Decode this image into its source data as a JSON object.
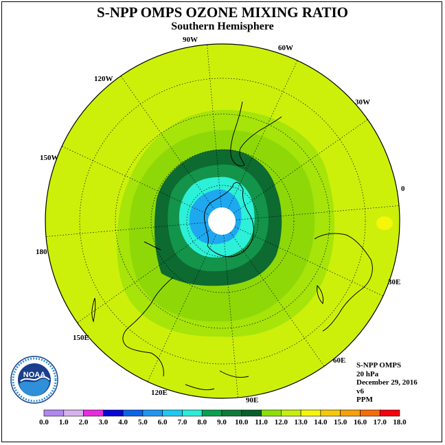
{
  "title": "S-NPP OMPS OZONE MIXING RATIO",
  "subtitle": "Southern Hemisphere",
  "longitude_labels": [
    "90W",
    "60W",
    "30W",
    "0",
    "30E",
    "60E",
    "90E",
    "120E",
    "150E",
    "180",
    "150W",
    "120W"
  ],
  "info": {
    "instrument": "S-NPP OMPS",
    "level": "20 hPa",
    "date": "December 29, 2016",
    "version": "v6",
    "units": "PPM"
  },
  "logo": {
    "text": "NOAA",
    "icon": "noaa-logo"
  },
  "colorbar": {
    "labels": [
      "0.0",
      "1.0",
      "2.0",
      "3.0",
      "4.0",
      "5.0",
      "6.0",
      "7.0",
      "8.0",
      "9.0",
      "10.0",
      "11.0",
      "12.0",
      "13.0",
      "14.0",
      "15.0",
      "16.0",
      "17.0",
      "18.0"
    ],
    "colors": [
      "#b088ee",
      "#d6b2f0",
      "#e82cde",
      "#0606d8",
      "#0a64e6",
      "#1e96f0",
      "#1ec8f0",
      "#2aecd8",
      "#0aa050",
      "#0e7c38",
      "#06602a",
      "#8ede08",
      "#c6ee10",
      "#f6f60a",
      "#f6c80a",
      "#f6a00a",
      "#f66c0a",
      "#f6000a",
      "#8a5030"
    ]
  },
  "map_colors": {
    "background": "#ccf00a",
    "ring_11": "#a6e40a",
    "ring_10": "#8ed808",
    "ring_9": "#0d6a30",
    "ring_8": "#13944a",
    "ring_7": "#2cf0d8",
    "ring_6": "#1ea8f0",
    "pole": "#ffffff",
    "hotspot": "#f6f60a"
  }
}
